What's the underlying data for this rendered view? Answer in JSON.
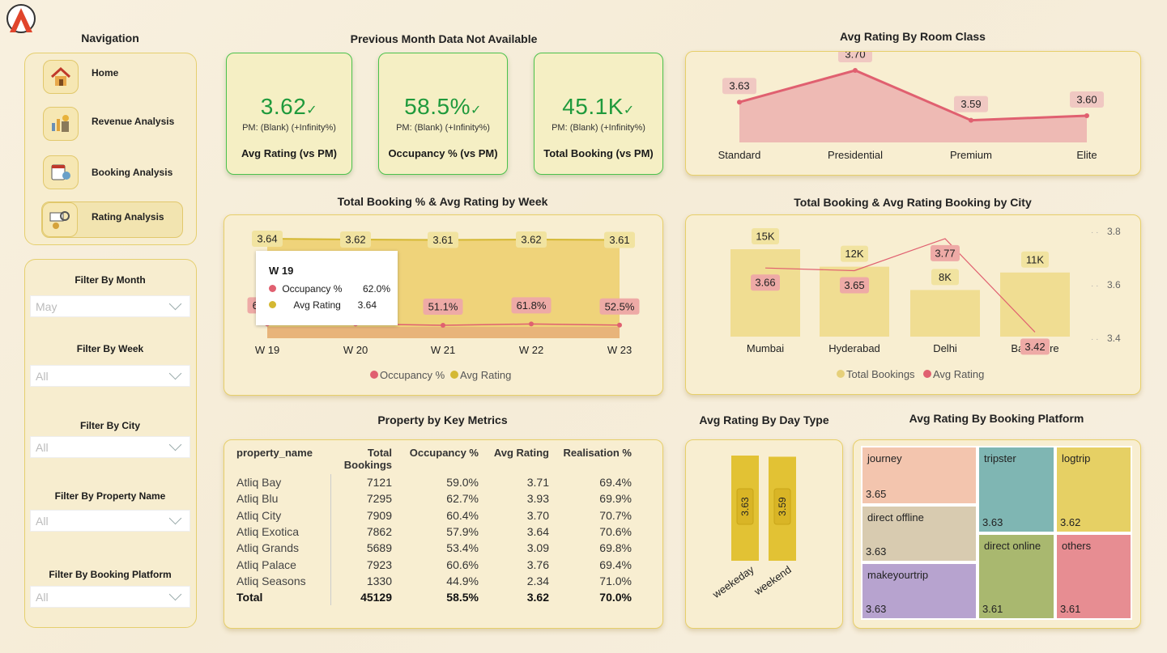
{
  "logo": "A",
  "navigation": {
    "title": "Navigation",
    "items": [
      {
        "label": "Home",
        "icon": "home-icon"
      },
      {
        "label": "Revenue Analysis",
        "icon": "revenue-icon"
      },
      {
        "label": "Booking Analysis",
        "icon": "booking-icon"
      },
      {
        "label": "Rating Analysis",
        "icon": "rating-icon"
      }
    ]
  },
  "filters": [
    {
      "label": "Filter By Month",
      "value": "May"
    },
    {
      "label": "Filter By Week",
      "value": "All"
    },
    {
      "label": "Filter By City",
      "value": "All"
    },
    {
      "label": "Filter By Property Name",
      "value": "All"
    },
    {
      "label": "Filter By Booking Platform",
      "value": "All"
    }
  ],
  "kpi_header": "Previous Month Data Not Available",
  "kpis": [
    {
      "value": "3.62",
      "pm": "PM: (Blank) (+Infinity%)",
      "label": "Avg Rating (vs PM)"
    },
    {
      "value": "58.5%",
      "pm": "PM: (Blank) (+Infinity%)",
      "label": "Occupancy % (vs PM)"
    },
    {
      "value": "45.1K",
      "pm": "PM: (Blank) (+Infinity%)",
      "label": "Total Booking (vs PM)"
    }
  ],
  "colors": {
    "accent_green": "#1f9a3c",
    "rating_line": "#e06070",
    "gold": "#e6c84a"
  },
  "chart_data": [
    {
      "id": "room_class",
      "type": "area",
      "title": "Avg Rating By Room Class",
      "categories": [
        "Standard",
        "Presidential",
        "Premium",
        "Elite"
      ],
      "values": [
        3.63,
        3.7,
        3.59,
        3.6
      ],
      "labels": [
        "3.63",
        "3.70",
        "3.59",
        "3.60"
      ]
    },
    {
      "id": "week",
      "type": "bar",
      "title": "Total Booking % & Avg Rating by Week",
      "categories": [
        "W 19",
        "W 20",
        "W 21",
        "W 22",
        "W 23"
      ],
      "series": [
        {
          "name": "Occupancy %",
          "values": [
            62.0,
            62.0,
            51.1,
            61.8,
            52.5
          ],
          "labels": [
            "62.0%",
            "",
            "51.1%",
            "61.8%",
            "52.5%"
          ]
        },
        {
          "name": "Avg Rating",
          "values": [
            3.64,
            3.62,
            3.61,
            3.62,
            3.61
          ],
          "labels": [
            "3.64",
            "3.62",
            "3.61",
            "3.62",
            "3.61"
          ]
        }
      ],
      "tooltip": {
        "title": "W 19",
        "rows": [
          {
            "name": "Occupancy %",
            "value": "62.0%"
          },
          {
            "name": "Avg Rating",
            "value": "3.64"
          }
        ]
      },
      "legend": "bottom"
    },
    {
      "id": "city",
      "type": "bar",
      "title": "Total Booking & Avg Rating Booking by City",
      "categories": [
        "Mumbai",
        "Hyderabad",
        "Delhi",
        "Bangalore"
      ],
      "series": [
        {
          "name": "Total Bookings",
          "values": [
            15000,
            12000,
            8000,
            11000
          ],
          "labels": [
            "15K",
            "12K",
            "8K",
            "11K"
          ]
        },
        {
          "name": "Avg Rating",
          "values": [
            3.66,
            3.65,
            3.77,
            3.42
          ],
          "labels": [
            "3.66",
            "3.65",
            "3.77",
            "3.42"
          ]
        }
      ],
      "y2_ticks": [
        "3.8",
        "3.6",
        "3.4"
      ],
      "legend": "bottom"
    },
    {
      "id": "day_type",
      "type": "bar",
      "title": "Avg Rating By Day Type",
      "categories": [
        "weekeday",
        "weekend"
      ],
      "values": [
        3.63,
        3.59
      ],
      "labels": [
        "3.63",
        "3.59"
      ]
    },
    {
      "id": "platform",
      "type": "heatmap",
      "title": "Avg Rating By Booking Platform",
      "tiles": [
        {
          "name": "journey",
          "value": "3.65"
        },
        {
          "name": "direct offline",
          "value": "3.63"
        },
        {
          "name": "makeyourtrip",
          "value": "3.63"
        },
        {
          "name": "tripster",
          "value": "3.63"
        },
        {
          "name": "direct online",
          "value": "3.61"
        },
        {
          "name": "logtrip",
          "value": "3.62"
        },
        {
          "name": "others",
          "value": "3.61"
        }
      ]
    }
  ],
  "table": {
    "title": "Property by Key Metrics",
    "headers": [
      "property_name",
      "Total Bookings",
      "Occupancy %",
      "Avg Rating",
      "Realisation %"
    ],
    "rows": [
      [
        "Atliq Bay",
        "7121",
        "59.0%",
        "3.71",
        "69.4%"
      ],
      [
        "Atliq Blu",
        "7295",
        "62.7%",
        "3.93",
        "69.9%"
      ],
      [
        "Atliq City",
        "7909",
        "60.4%",
        "3.70",
        "70.7%"
      ],
      [
        "Atliq Exotica",
        "7862",
        "57.9%",
        "3.64",
        "70.6%"
      ],
      [
        "Atliq Grands",
        "5689",
        "53.4%",
        "3.09",
        "69.8%"
      ],
      [
        "Atliq Palace",
        "7923",
        "60.6%",
        "3.76",
        "69.4%"
      ],
      [
        "Atliq Seasons",
        "1330",
        "44.9%",
        "2.34",
        "71.0%"
      ]
    ],
    "total": [
      "Total",
      "45129",
      "58.5%",
      "3.62",
      "70.0%"
    ]
  }
}
